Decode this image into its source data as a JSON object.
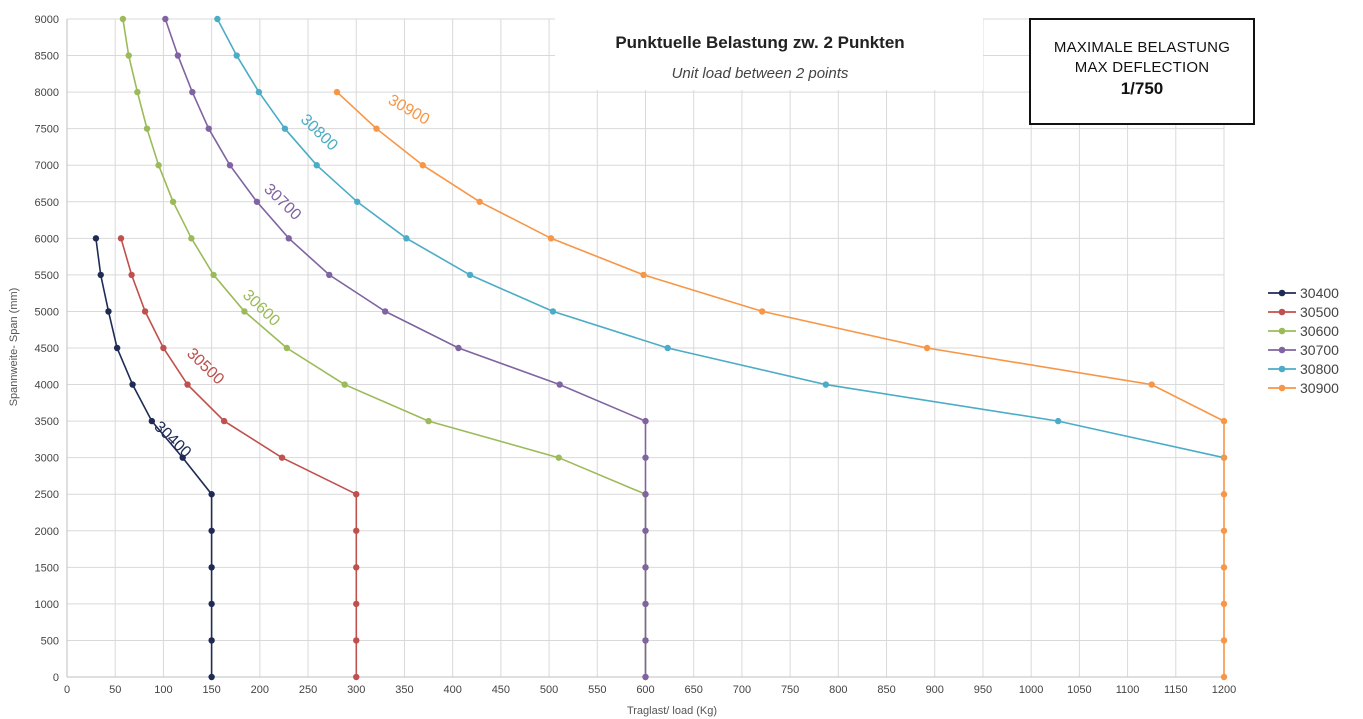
{
  "chart_data": {
    "type": "line",
    "title": "Punktuelle Belastung zw. 2 Punkten",
    "subtitle": "Unit load between 2 points",
    "xlabel": "Traglast/ load (Kg)",
    "ylabel": "Spannweite- Span (mm)",
    "xlim": [
      0,
      1200
    ],
    "ylim": [
      0,
      9000
    ],
    "xticks": [
      0,
      50,
      100,
      150,
      200,
      250,
      300,
      350,
      400,
      450,
      500,
      550,
      600,
      650,
      700,
      750,
      800,
      850,
      900,
      950,
      1000,
      1050,
      1100,
      1150,
      1200
    ],
    "yticks": [
      0,
      500,
      1000,
      1500,
      2000,
      2500,
      3000,
      3500,
      4000,
      4500,
      5000,
      5500,
      6000,
      6500,
      7000,
      7500,
      8000,
      8500,
      9000
    ],
    "grid": true,
    "legend_position": "right",
    "series": [
      {
        "name": "30400",
        "color": "#1f2b55",
        "points": [
          [
            30,
            6000
          ],
          [
            35,
            5500
          ],
          [
            43,
            5000
          ],
          [
            52,
            4500
          ],
          [
            68,
            4000
          ],
          [
            88,
            3500
          ],
          [
            120,
            3000
          ],
          [
            150,
            2500
          ],
          [
            150,
            2000
          ],
          [
            150,
            1500
          ],
          [
            150,
            1000
          ],
          [
            150,
            500
          ],
          [
            150,
            0
          ]
        ]
      },
      {
        "name": "30500",
        "color": "#c0504d",
        "points": [
          [
            56,
            6000
          ],
          [
            67,
            5500
          ],
          [
            81,
            5000
          ],
          [
            100,
            4500
          ],
          [
            125,
            4000
          ],
          [
            163,
            3500
          ],
          [
            223,
            3000
          ],
          [
            300,
            2500
          ],
          [
            300,
            2000
          ],
          [
            300,
            1500
          ],
          [
            300,
            1000
          ],
          [
            300,
            500
          ],
          [
            300,
            0
          ]
        ]
      },
      {
        "name": "30600",
        "color": "#9bbb59",
        "points": [
          [
            58,
            9000
          ],
          [
            64,
            8500
          ],
          [
            73,
            8000
          ],
          [
            83,
            7500
          ],
          [
            95,
            7000
          ],
          [
            110,
            6500
          ],
          [
            129,
            6000
          ],
          [
            152,
            5500
          ],
          [
            184,
            5000
          ],
          [
            228,
            4500
          ],
          [
            288,
            4000
          ],
          [
            375,
            3500
          ],
          [
            510,
            3000
          ],
          [
            600,
            2500
          ],
          [
            600,
            2000
          ],
          [
            600,
            1500
          ],
          [
            600,
            1000
          ],
          [
            600,
            500
          ],
          [
            600,
            0
          ]
        ]
      },
      {
        "name": "30700",
        "color": "#8064a2",
        "points": [
          [
            102,
            9000
          ],
          [
            115,
            8500
          ],
          [
            130,
            8000
          ],
          [
            147,
            7500
          ],
          [
            169,
            7000
          ],
          [
            197,
            6500
          ],
          [
            230,
            6000
          ],
          [
            272,
            5500
          ],
          [
            330,
            5000
          ],
          [
            406,
            4500
          ],
          [
            511,
            4000
          ],
          [
            600,
            3500
          ],
          [
            600,
            3000
          ],
          [
            600,
            2500
          ],
          [
            600,
            2000
          ],
          [
            600,
            1500
          ],
          [
            600,
            1000
          ],
          [
            600,
            500
          ],
          [
            600,
            0
          ]
        ]
      },
      {
        "name": "30800",
        "color": "#4bacc6",
        "points": [
          [
            156,
            9000
          ],
          [
            176,
            8500
          ],
          [
            199,
            8000
          ],
          [
            226,
            7500
          ],
          [
            259,
            7000
          ],
          [
            301,
            6500
          ],
          [
            352,
            6000
          ],
          [
            418,
            5500
          ],
          [
            504,
            5000
          ],
          [
            623,
            4500
          ],
          [
            787,
            4000
          ],
          [
            1028,
            3500
          ],
          [
            1200,
            3000
          ]
        ]
      },
      {
        "name": "30900",
        "color": "#f79646",
        "points": [
          [
            280,
            8000
          ],
          [
            321,
            7500
          ],
          [
            369,
            7000
          ],
          [
            428,
            6500
          ],
          [
            502,
            6000
          ],
          [
            598,
            5500
          ],
          [
            721,
            5000
          ],
          [
            892,
            4500
          ],
          [
            1125,
            4000
          ],
          [
            1200,
            3500
          ],
          [
            1200,
            3000
          ],
          [
            1200,
            2500
          ],
          [
            1200,
            2000
          ],
          [
            1200,
            1500
          ],
          [
            1200,
            1000
          ],
          [
            1200,
            500
          ],
          [
            1200,
            0
          ]
        ]
      }
    ],
    "annotations": [
      {
        "text": "30400",
        "series": "30400",
        "x": 106,
        "y": 3200,
        "angle": 44
      },
      {
        "text": "30500",
        "series": "30500",
        "x": 140,
        "y": 4200,
        "angle": 44
      },
      {
        "text": "30600",
        "series": "30600",
        "x": 198,
        "y": 5000,
        "angle": 44
      },
      {
        "text": "30700",
        "series": "30700",
        "x": 220,
        "y": 6450,
        "angle": 44
      },
      {
        "text": "30800",
        "series": "30800",
        "x": 258,
        "y": 7400,
        "angle": 44
      },
      {
        "text": "30900",
        "series": "30900",
        "x": 352,
        "y": 7700,
        "angle": 30
      }
    ]
  },
  "info_box": {
    "line1": "MAXIMALE  BELASTUNG",
    "line2": "MAX DEFLECTION",
    "line3": "1/750"
  }
}
